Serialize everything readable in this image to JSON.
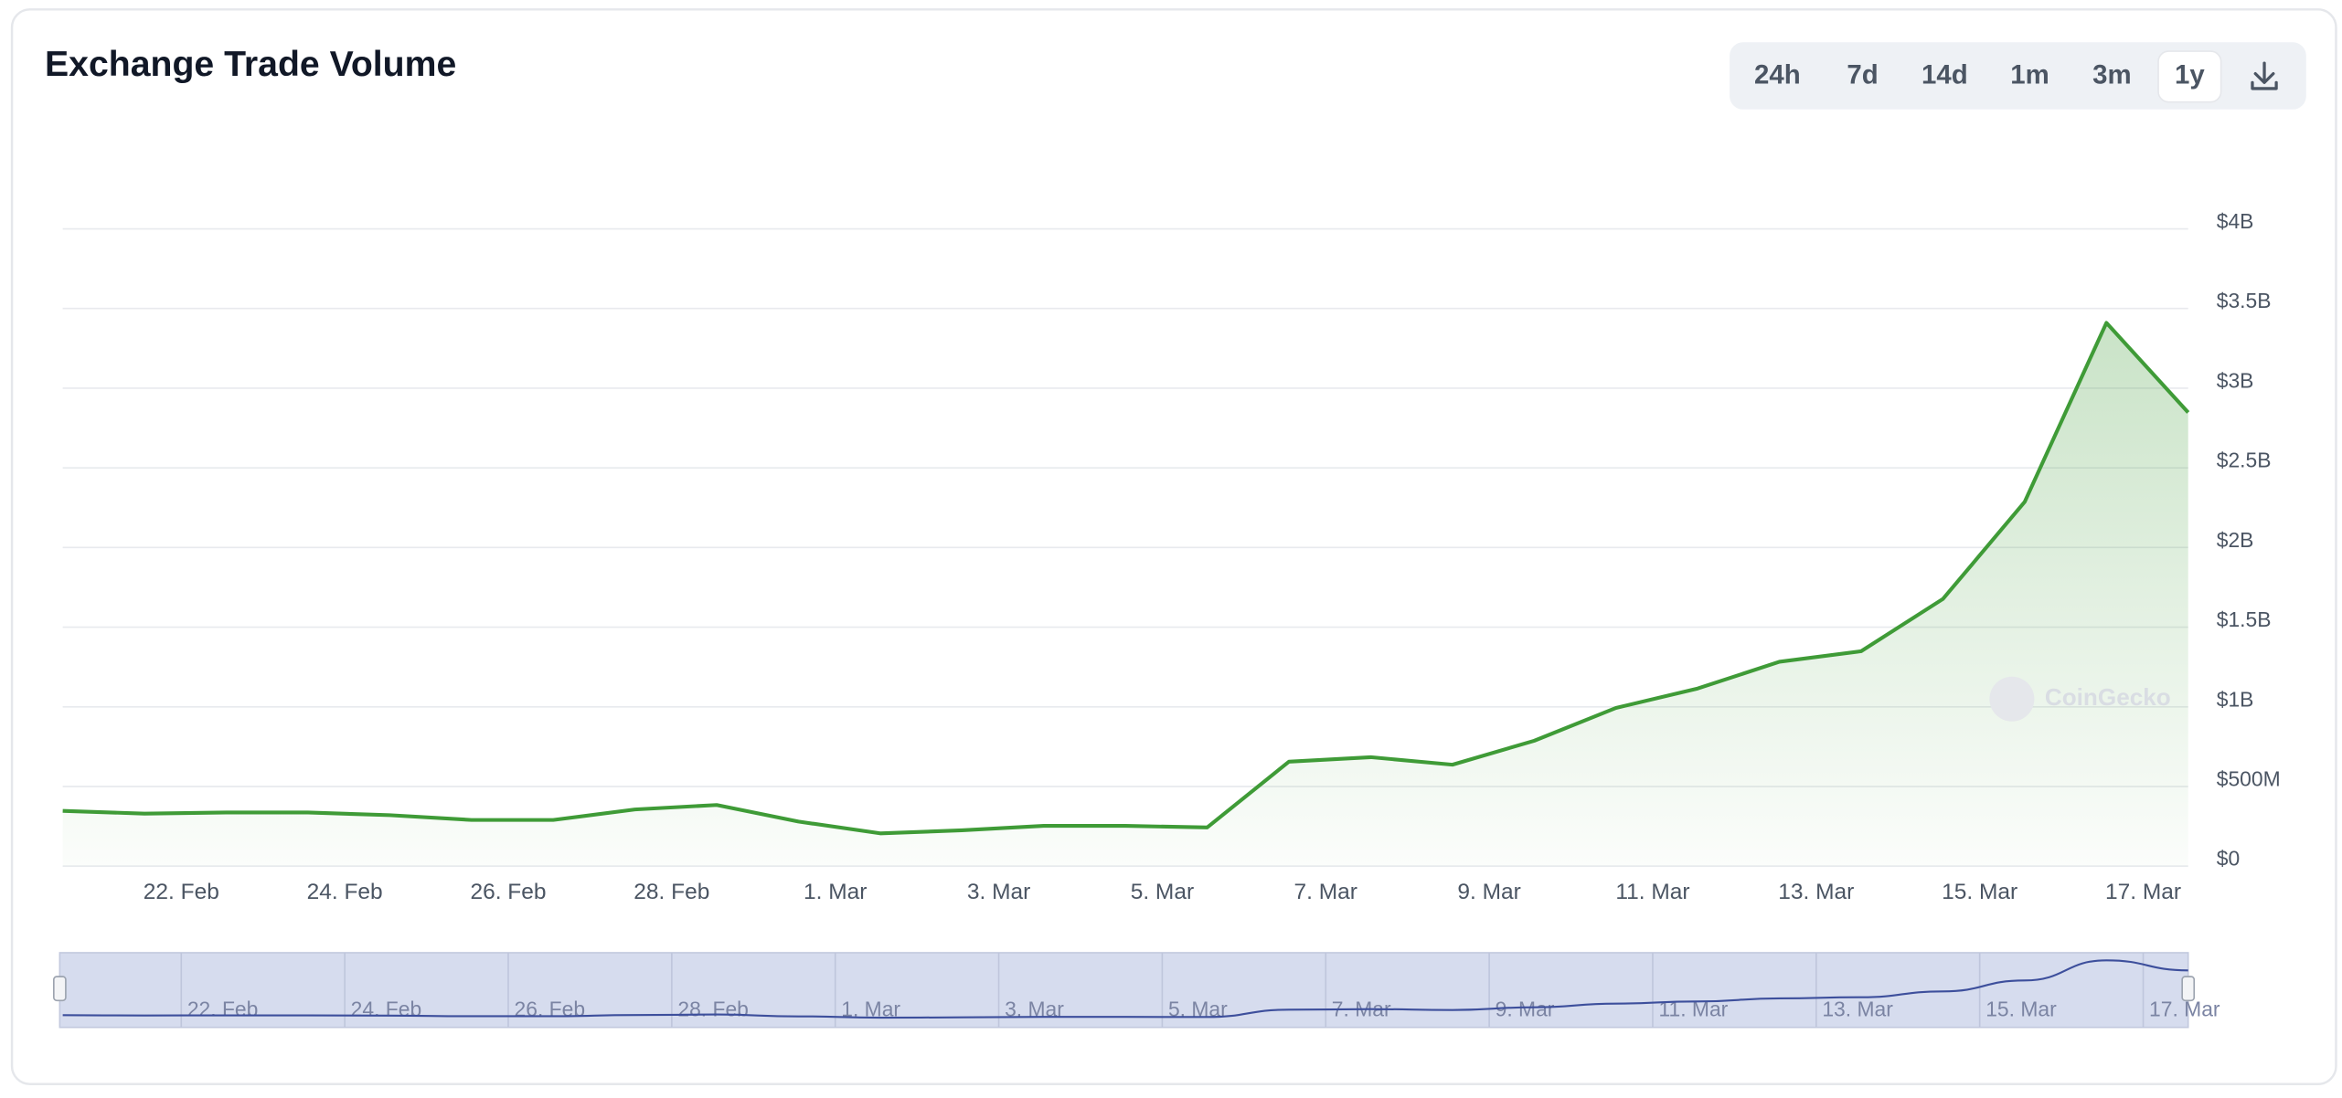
{
  "chart_data": {
    "type": "line",
    "title": "Exchange Trade Volume",
    "categories": [
      null,
      "22. Feb",
      null,
      "24. Feb",
      null,
      "26. Feb",
      null,
      "28. Feb",
      null,
      "1. Mar",
      null,
      "3. Mar",
      null,
      "5. Mar",
      null,
      "7. Mar",
      null,
      "9. Mar",
      null,
      "11. Mar",
      null,
      "13. Mar",
      null,
      "15. Mar",
      null,
      "17. Mar",
      null
    ],
    "values": [
      347000000,
      330000000,
      337000000,
      337000000,
      320000000,
      290000000,
      290000000,
      356000000,
      384000000,
      280000000,
      206000000,
      225000000,
      253000000,
      253000000,
      243000000,
      656000000,
      684000000,
      637000000,
      787000000,
      993000000,
      1115000000,
      1283000000,
      1349000000,
      1677000000,
      2286000000,
      3410000000,
      2848000000
    ],
    "color": "#3f9b37",
    "navigator_color": "#3d4f9c",
    "ylim": [
      0,
      4000000000
    ],
    "yticks": [
      {
        "value": 0,
        "label": "$0"
      },
      {
        "value": 500000000,
        "label": "$500M"
      },
      {
        "value": 1000000000,
        "label": "$1B"
      },
      {
        "value": 1500000000,
        "label": "$1.5B"
      },
      {
        "value": 2000000000,
        "label": "$2B"
      },
      {
        "value": 2500000000,
        "label": "$2.5B"
      },
      {
        "value": 3000000000,
        "label": "$3B"
      },
      {
        "value": 3500000000,
        "label": "$3.5B"
      },
      {
        "value": 4000000000,
        "label": "$4B"
      }
    ],
    "grid": true,
    "watermark": "CoinGecko",
    "range_buttons": [
      "24h",
      "7d",
      "14d",
      "1m",
      "3m",
      "1y"
    ],
    "selected_range": 5
  }
}
